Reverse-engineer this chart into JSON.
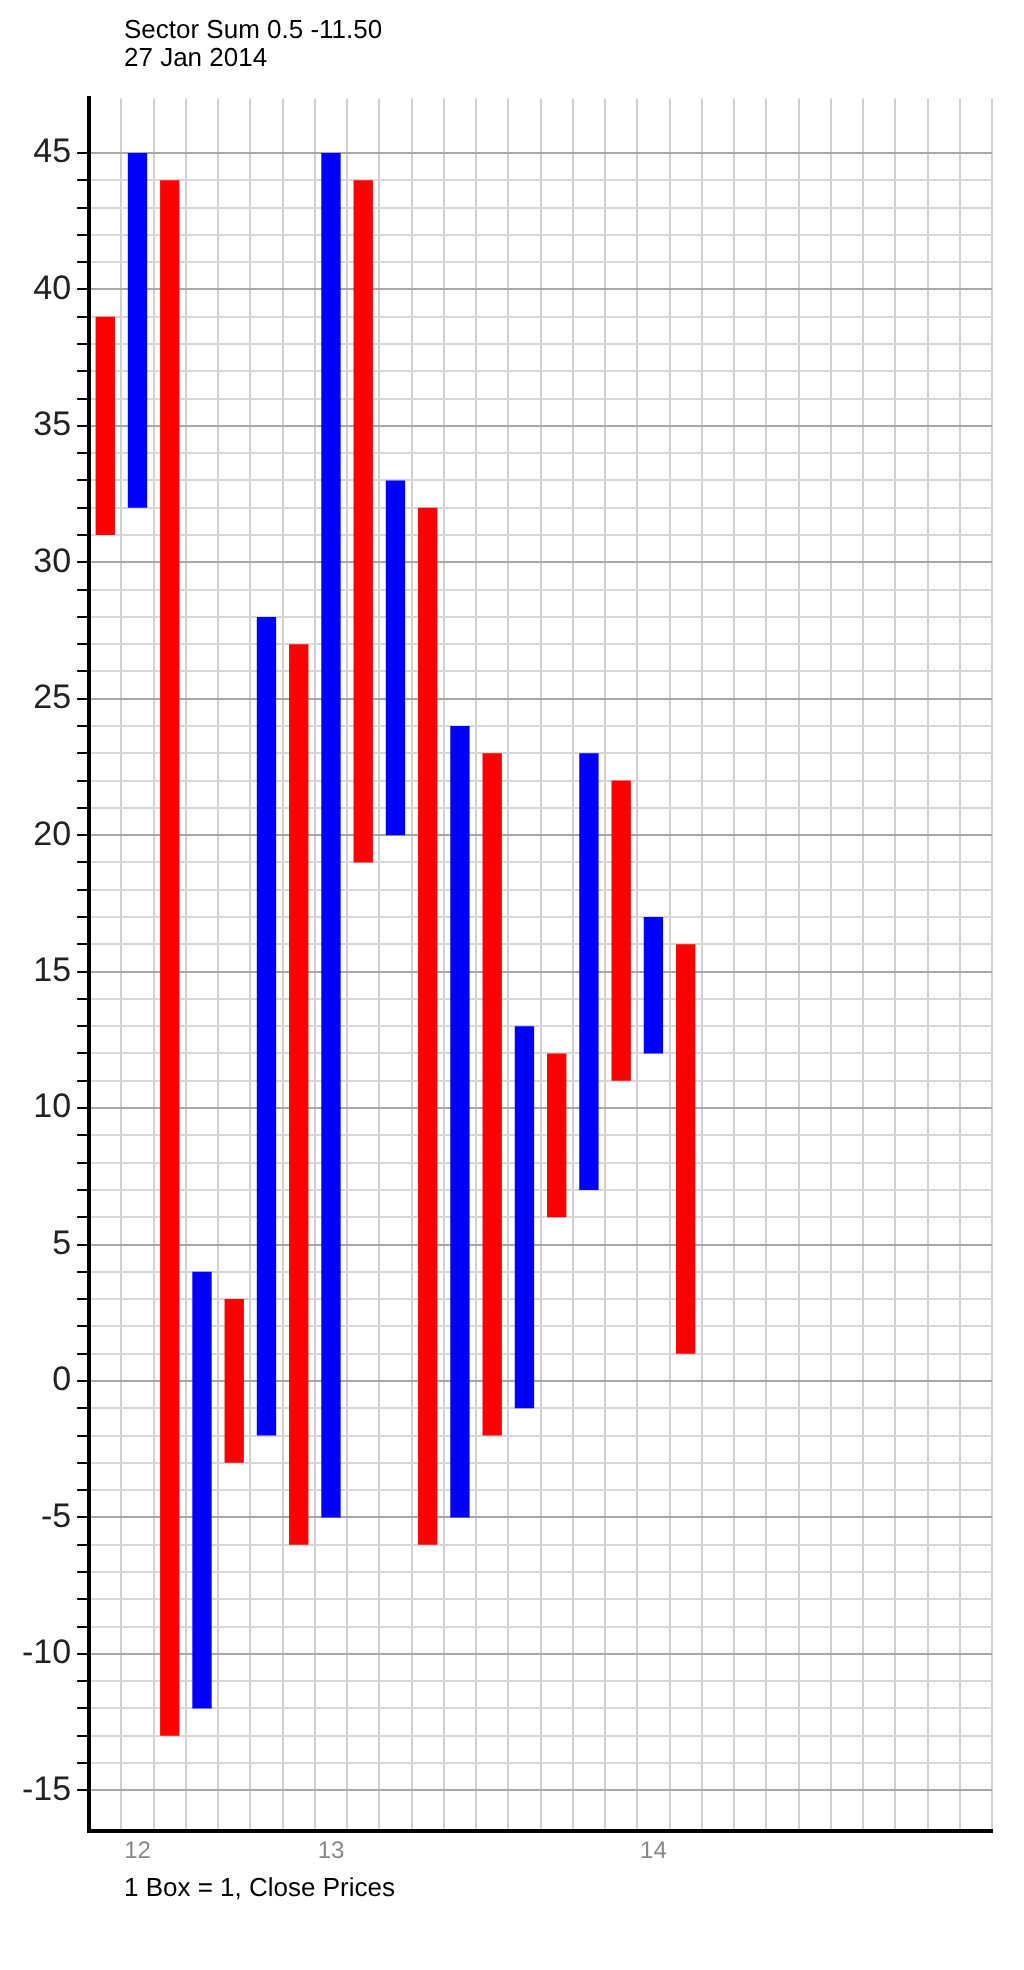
{
  "chart_data": {
    "type": "bar",
    "title": "Sector Sum 0.5 -11.50",
    "subtitle": "27 Jan 2014",
    "categories": [
      null,
      "12",
      null,
      null,
      null,
      null,
      null,
      "13",
      null,
      null,
      null,
      null,
      null,
      null,
      null,
      null,
      null,
      "14",
      null,
      null,
      null,
      null,
      null,
      null,
      null,
      null,
      null,
      null
    ],
    "base": [
      31,
      32,
      -13,
      -12,
      -3,
      -2,
      -6,
      -5,
      19,
      20,
      -6,
      -5,
      -2,
      -1,
      6,
      7,
      11,
      12,
      1,
      null,
      null,
      null,
      null,
      null,
      null,
      null,
      null,
      null
    ],
    "values": [
      8,
      13,
      57,
      16,
      6,
      30,
      33,
      50,
      25,
      13,
      38,
      29,
      25,
      14,
      6,
      16,
      11,
      5,
      15,
      null,
      null,
      null,
      null,
      null,
      null,
      null,
      null,
      null
    ],
    "colors": [
      "#ff0000",
      "#0000ff",
      "#ff0000",
      "#0000ff",
      "#ff0000",
      "#0000ff",
      "#ff0000",
      "#0000ff",
      "#ff0000",
      "#0000ff",
      "#ff0000",
      "#0000ff",
      "#ff0000",
      "#0000ff",
      "#ff0000",
      "#0000ff",
      "#ff0000",
      "#0000ff",
      "#ff0000",
      "#ff0000",
      "#ff0000",
      "#ff0000",
      "#ff0000",
      "#ff0000",
      "#ff0000",
      "#ff0000",
      "#ff0000",
      "#ff0000"
    ],
    "ylim": [
      -16.5,
      47
    ],
    "yticks": [
      -15,
      {
        "value": -14,
        "label": null
      },
      {
        "value": -13,
        "label": null
      },
      {
        "value": -12,
        "label": null
      },
      {
        "value": -11,
        "label": null
      },
      -10,
      {
        "value": -9,
        "label": null
      },
      {
        "value": -8,
        "label": null
      },
      {
        "value": -7,
        "label": null
      },
      {
        "value": -6,
        "label": null
      },
      -5,
      {
        "value": -4,
        "label": null
      },
      {
        "value": -3,
        "label": null
      },
      {
        "value": -2,
        "label": null
      },
      {
        "value": -1,
        "label": null
      },
      0,
      {
        "value": 1,
        "label": null
      },
      {
        "value": 2,
        "label": null
      },
      {
        "value": 3,
        "label": null
      },
      {
        "value": 4,
        "label": null
      },
      5,
      {
        "value": 6,
        "label": null
      },
      {
        "value": 7,
        "label": null
      },
      {
        "value": 8,
        "label": null
      },
      {
        "value": 9,
        "label": null
      },
      10,
      {
        "value": 11,
        "label": null
      },
      {
        "value": 12,
        "label": null
      },
      {
        "value": 13,
        "label": null
      },
      {
        "value": 14,
        "label": null
      },
      15,
      {
        "value": 16,
        "label": null
      },
      {
        "value": 17,
        "label": null
      },
      {
        "value": 18,
        "label": null
      },
      {
        "value": 19,
        "label": null
      },
      20,
      {
        "value": 21,
        "label": null
      },
      {
        "value": 22,
        "label": null
      },
      {
        "value": 23,
        "label": null
      },
      {
        "value": 24,
        "label": null
      },
      25,
      {
        "value": 26,
        "label": null
      },
      {
        "value": 27,
        "label": null
      },
      {
        "value": 28,
        "label": null
      },
      {
        "value": 29,
        "label": null
      },
      30,
      {
        "value": 31,
        "label": null
      },
      {
        "value": 32,
        "label": null
      },
      {
        "value": 33,
        "label": null
      },
      {
        "value": 34,
        "label": null
      },
      35,
      {
        "value": 36,
        "label": null
      },
      {
        "value": 37,
        "label": null
      },
      {
        "value": 38,
        "label": null
      },
      {
        "value": 39,
        "label": null
      },
      40,
      {
        "value": 41,
        "label": null
      },
      {
        "value": 42,
        "label": null
      },
      {
        "value": 43,
        "label": null
      },
      {
        "value": 44,
        "label": null
      },
      45
    ],
    "grid": true,
    "annotations": [
      "1 Box = 1, Close Prices"
    ]
  }
}
